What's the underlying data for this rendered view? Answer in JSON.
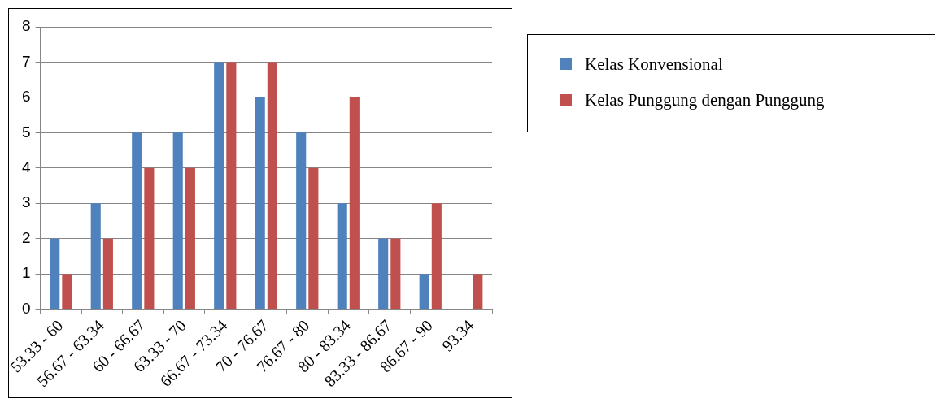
{
  "chart_data": {
    "type": "bar",
    "categories": [
      "53.33 - 60",
      "56.67 - 63.34",
      "60 - 66.67",
      "63.33 - 70",
      "66.67 - 73.34",
      "70 - 76.67",
      "76.67 - 80",
      "80 - 83.34",
      "83.33 - 86.67",
      "86.67 - 90",
      "93.34"
    ],
    "series": [
      {
        "name": "Kelas Konvensional",
        "color": "#4f81bd",
        "values": [
          2,
          3,
          5,
          5,
          7,
          6,
          5,
          3,
          2,
          1,
          0
        ]
      },
      {
        "name": "Kelas Punggung dengan Punggung",
        "color": "#c0504d",
        "values": [
          1,
          2,
          4,
          4,
          7,
          7,
          4,
          6,
          2,
          3,
          1
        ]
      }
    ],
    "ylim": [
      0,
      8
    ],
    "yticks": [
      0,
      1,
      2,
      3,
      4,
      5,
      6,
      7,
      8
    ],
    "grid": "y",
    "legend": "right"
  }
}
